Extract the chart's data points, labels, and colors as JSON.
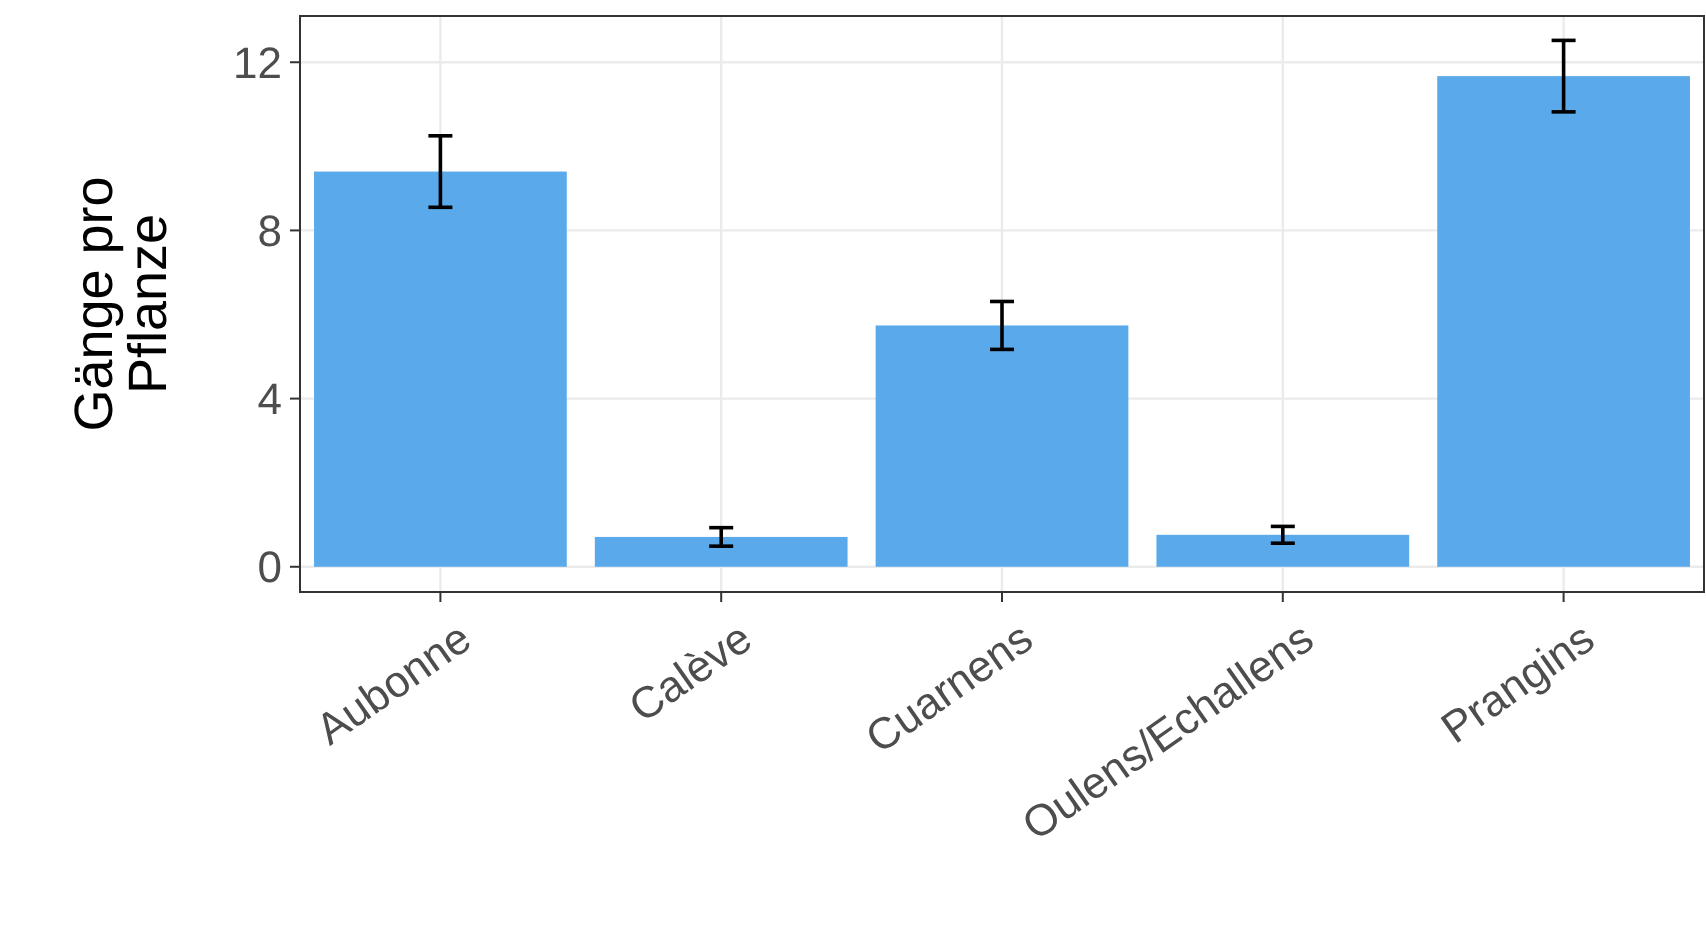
{
  "chart_data": {
    "type": "bar",
    "ylabel": "Gänge pro\nPflanze",
    "categories": [
      "Aubonne",
      "Calève",
      "Cuarnens",
      "Oulens/Echallens",
      "Prangins"
    ],
    "values": [
      9.4,
      0.71,
      5.74,
      0.76,
      11.67
    ],
    "errors": [
      0.85,
      0.22,
      0.57,
      0.2,
      0.85
    ],
    "color": "#5aaaeb",
    "ylim": [
      -0.6,
      13.1
    ],
    "yticks": [
      0,
      4,
      8,
      12
    ],
    "grid": true
  }
}
